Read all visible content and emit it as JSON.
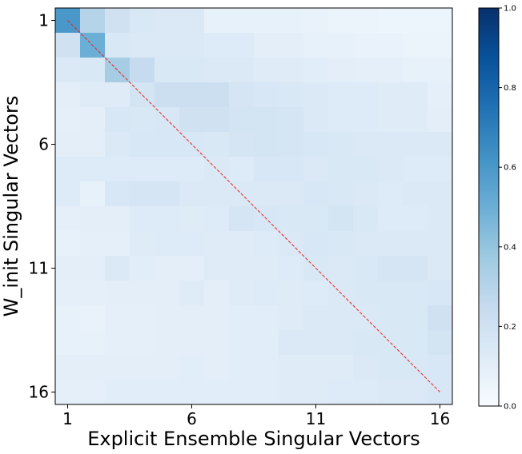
{
  "chart_data": {
    "type": "heatmap",
    "xlabel": "Explicit Ensemble Singular Vectors",
    "ylabel": "W_init Singular Vectors",
    "x_tick_labels": [
      "1",
      "6",
      "11",
      "16"
    ],
    "y_tick_labels": [
      "1",
      "6",
      "11",
      "16"
    ],
    "tick_positions": [
      1,
      6,
      11,
      16
    ],
    "rows": 16,
    "cols": 16,
    "colormap": "Blues",
    "colorbar": {
      "min": 0.0,
      "max": 1.0,
      "tick_labels": [
        "0.0",
        "0.2",
        "0.4",
        "0.6",
        "0.8",
        "1.0"
      ],
      "tick_values": [
        0.0,
        0.2,
        0.4,
        0.6,
        0.8,
        1.0
      ]
    },
    "diagonal_line": {
      "color": "#e8221c",
      "style": "dashed",
      "from": [
        1,
        1
      ],
      "to": [
        16,
        16
      ]
    },
    "values": [
      [
        0.6,
        0.3,
        0.2,
        0.15,
        0.14,
        0.14,
        0.08,
        0.08,
        0.08,
        0.08,
        0.07,
        0.06,
        0.06,
        0.05,
        0.05,
        0.05
      ],
      [
        0.2,
        0.5,
        0.15,
        0.14,
        0.14,
        0.14,
        0.13,
        0.13,
        0.1,
        0.1,
        0.08,
        0.08,
        0.07,
        0.07,
        0.06,
        0.06
      ],
      [
        0.14,
        0.15,
        0.35,
        0.25,
        0.15,
        0.15,
        0.14,
        0.14,
        0.12,
        0.12,
        0.11,
        0.1,
        0.09,
        0.09,
        0.08,
        0.08
      ],
      [
        0.1,
        0.12,
        0.12,
        0.18,
        0.22,
        0.22,
        0.22,
        0.17,
        0.16,
        0.15,
        0.14,
        0.13,
        0.13,
        0.12,
        0.12,
        0.09
      ],
      [
        0.09,
        0.1,
        0.16,
        0.15,
        0.16,
        0.2,
        0.2,
        0.18,
        0.18,
        0.17,
        0.14,
        0.13,
        0.13,
        0.12,
        0.12,
        0.1
      ],
      [
        0.1,
        0.1,
        0.14,
        0.16,
        0.16,
        0.16,
        0.15,
        0.17,
        0.18,
        0.17,
        0.16,
        0.15,
        0.14,
        0.14,
        0.14,
        0.14
      ],
      [
        0.13,
        0.13,
        0.13,
        0.13,
        0.13,
        0.13,
        0.14,
        0.13,
        0.16,
        0.16,
        0.14,
        0.15,
        0.15,
        0.14,
        0.13,
        0.13
      ],
      [
        0.13,
        0.08,
        0.16,
        0.17,
        0.17,
        0.14,
        0.14,
        0.14,
        0.14,
        0.14,
        0.16,
        0.15,
        0.14,
        0.13,
        0.14,
        0.14
      ],
      [
        0.09,
        0.1,
        0.1,
        0.13,
        0.13,
        0.12,
        0.13,
        0.17,
        0.16,
        0.15,
        0.15,
        0.18,
        0.15,
        0.13,
        0.13,
        0.14
      ],
      [
        0.08,
        0.09,
        0.09,
        0.12,
        0.13,
        0.13,
        0.12,
        0.12,
        0.13,
        0.14,
        0.16,
        0.15,
        0.14,
        0.14,
        0.14,
        0.14
      ],
      [
        0.1,
        0.1,
        0.14,
        0.11,
        0.1,
        0.1,
        0.12,
        0.12,
        0.12,
        0.13,
        0.15,
        0.14,
        0.15,
        0.17,
        0.17,
        0.14
      ],
      [
        0.09,
        0.09,
        0.1,
        0.1,
        0.1,
        0.12,
        0.1,
        0.12,
        0.13,
        0.12,
        0.13,
        0.14,
        0.15,
        0.15,
        0.15,
        0.16
      ],
      [
        0.08,
        0.07,
        0.09,
        0.09,
        0.1,
        0.1,
        0.1,
        0.11,
        0.11,
        0.12,
        0.14,
        0.14,
        0.14,
        0.15,
        0.15,
        0.2
      ],
      [
        0.08,
        0.08,
        0.09,
        0.09,
        0.1,
        0.1,
        0.1,
        0.11,
        0.11,
        0.14,
        0.14,
        0.14,
        0.15,
        0.15,
        0.15,
        0.18
      ],
      [
        0.1,
        0.1,
        0.1,
        0.1,
        0.1,
        0.11,
        0.1,
        0.11,
        0.11,
        0.12,
        0.12,
        0.12,
        0.14,
        0.15,
        0.15,
        0.16
      ],
      [
        0.09,
        0.09,
        0.11,
        0.11,
        0.11,
        0.11,
        0.11,
        0.11,
        0.11,
        0.12,
        0.12,
        0.13,
        0.13,
        0.14,
        0.14,
        0.16
      ]
    ]
  }
}
